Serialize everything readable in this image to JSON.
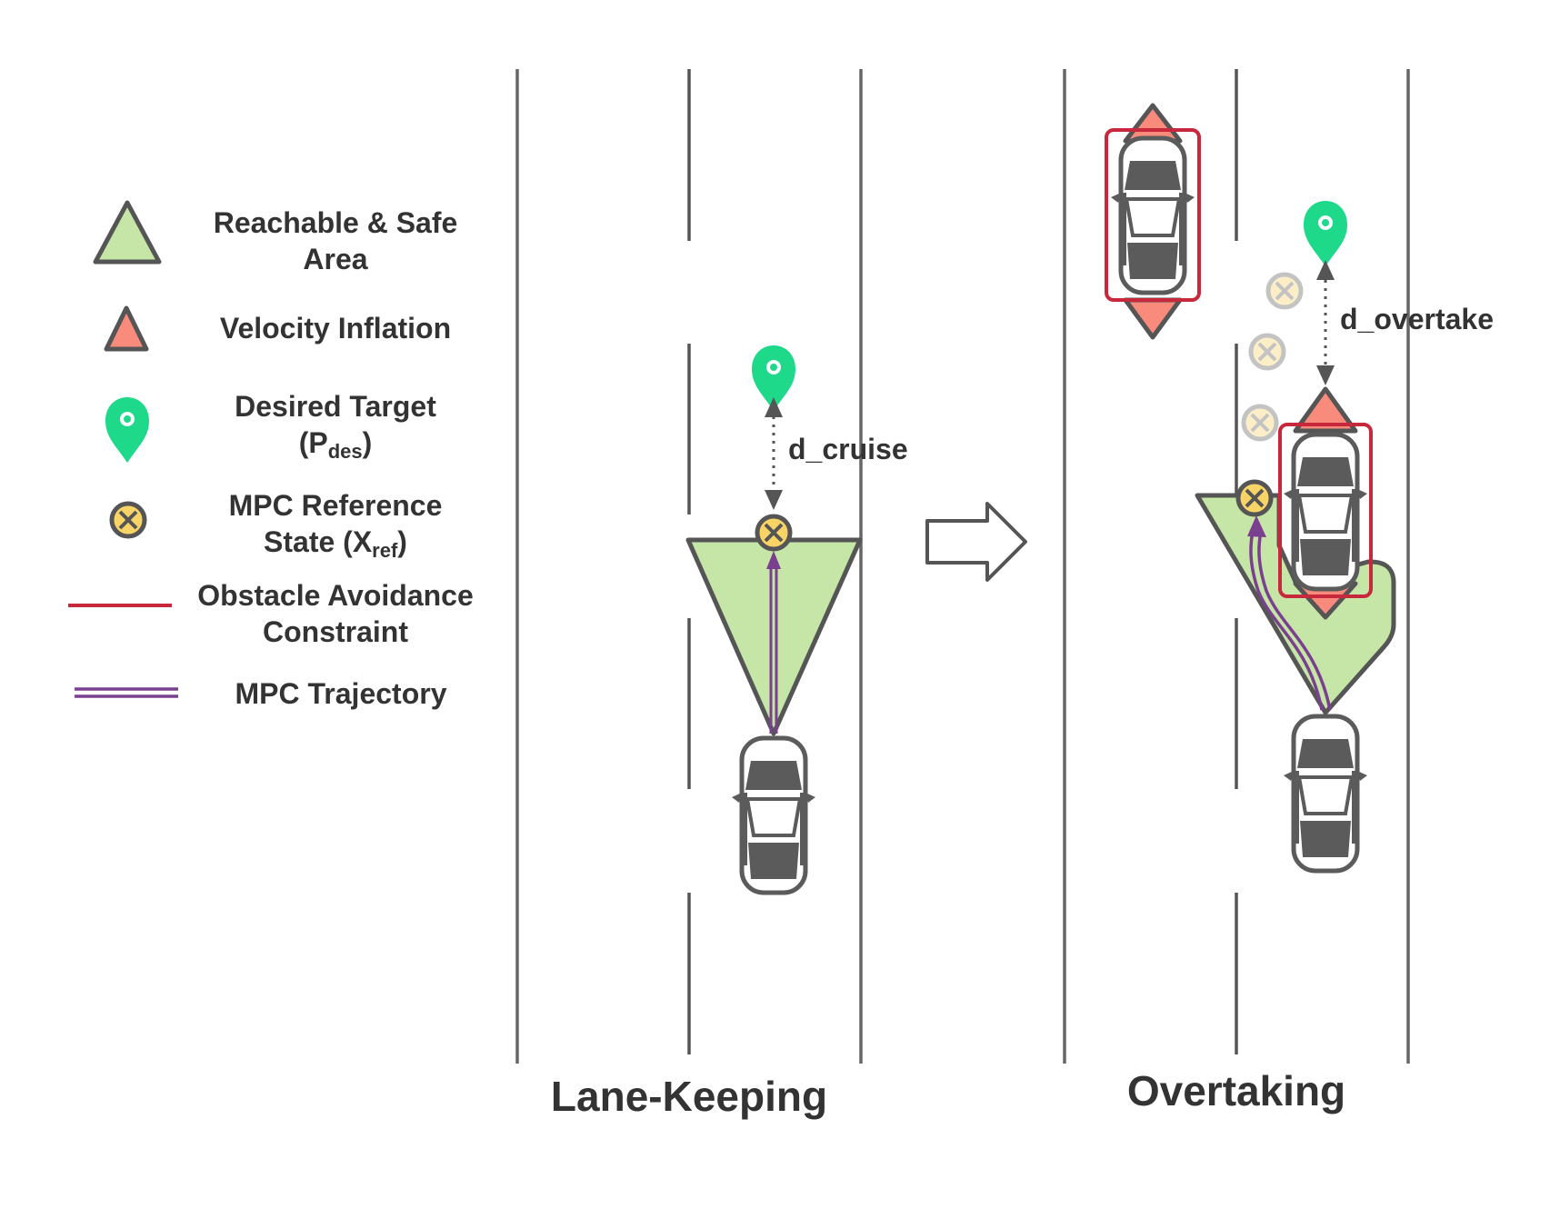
{
  "legend": {
    "reachable_line1": "Reachable & Safe",
    "reachable_line2": "Area",
    "velocity_inflation": "Velocity Inflation",
    "target_line1": "Desired Target",
    "target_open": "(P",
    "target_sub": "des",
    "target_close": ")",
    "mpc_ref_line1": "MPC Reference",
    "mpc_ref_open": "State (X",
    "mpc_ref_sub": "ref",
    "mpc_ref_close": ")",
    "obstacle_line1": "Obstacle Avoidance",
    "obstacle_line2": "Constraint",
    "trajectory": "MPC Trajectory"
  },
  "panels": {
    "lane_keeping": {
      "title": "Lane-Keeping",
      "distance_label": "d_cruise"
    },
    "overtaking": {
      "title": "Overtaking",
      "distance_label": "d_overtake"
    }
  },
  "colors": {
    "safe_area": "#c5e6a6",
    "velocity_inflation": "#f98b7d",
    "target": "#1ed98a",
    "reference": "#f7d465",
    "constraint": "#c8283c",
    "trajectory": "#7b3f8f",
    "car": "#5b5b5b",
    "lane_line": "#666666"
  },
  "icons": {
    "car": "car-top-view-icon",
    "target": "map-pin-icon",
    "reference": "circled-x-icon",
    "transition": "right-arrow-icon"
  }
}
